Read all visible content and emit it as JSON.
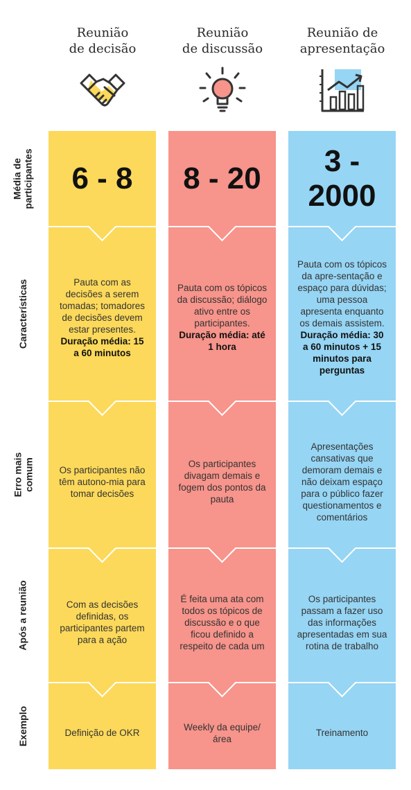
{
  "columns": [
    {
      "title_lines": [
        "Reunião",
        "de decisão"
      ],
      "icon": "handshake-icon",
      "color": "#fcd95a",
      "participants": "6 - 8",
      "characteristics": "Pauta com as decisões a serem tomadas; tomadores de decisões devem estar presentes.",
      "duration": "Duração média: 15 a 60 minutos",
      "common_error": "Os participantes não têm autono-mia para tomar decisões",
      "after_meeting": "Com as decisões definidas, os participantes partem para a ação",
      "example": "Definição de OKR"
    },
    {
      "title_lines": [
        "Reunião",
        "de discussão"
      ],
      "icon": "lightbulb-icon",
      "color": "#f7948b",
      "participants": "8 - 20",
      "characteristics": "Pauta com os tópicos da discussão; diálogo ativo entre os participantes.",
      "duration": "Duração média: até 1 hora",
      "common_error": "Os participantes divagam demais e fogem dos pontos da pauta",
      "after_meeting": "É feita uma ata com todos os tópicos de discussão e o que ficou definido a respeito de cada um",
      "example": "Weekly da equipe/área"
    },
    {
      "title_lines": [
        "Reunião de",
        "apresentação"
      ],
      "icon": "bar-chart-icon",
      "color": "#96d5f4",
      "participants": "3 - 2000",
      "characteristics": "Pauta com os tópicos da apre-sentação e espaço para dúvidas; uma pessoa apresenta enquanto os demais assistem.",
      "duration": "Duração média: 30 a 60 minutos + 15 minutos para perguntas",
      "common_error": "Apresentações cansativas que demoram demais e não deixam espaço para o público fazer questionamentos e comentários",
      "after_meeting": "Os participantes passam a fazer uso das informações apresentadas em sua rotina de trabalho",
      "example": "Treinamento"
    }
  ],
  "row_labels": {
    "participants": [
      "Média de",
      "participantes"
    ],
    "characteristics": [
      "Características"
    ],
    "common_error": [
      "Erro mais",
      "comum"
    ],
    "after_meeting": [
      "Após a reunião"
    ],
    "example": [
      "Exemplo"
    ]
  }
}
